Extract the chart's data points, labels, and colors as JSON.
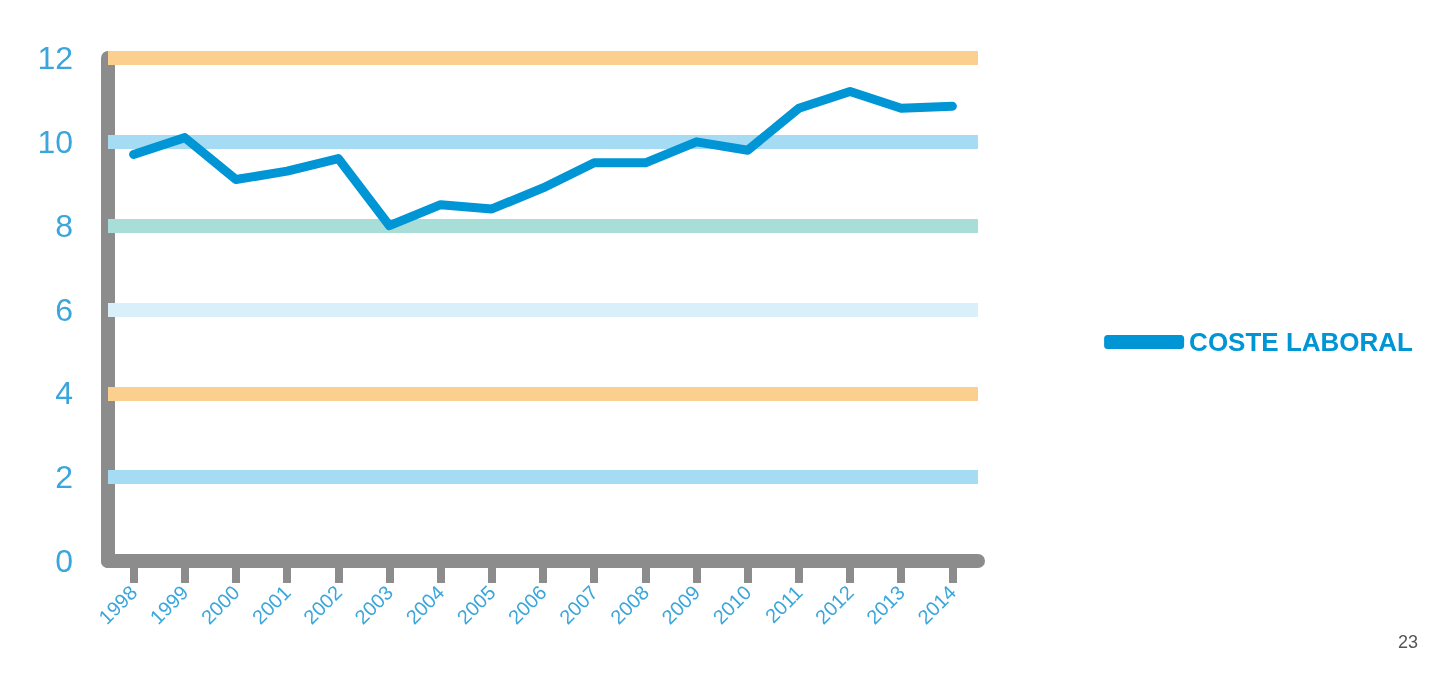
{
  "chart_data": {
    "type": "line",
    "categories": [
      "1998",
      "1999",
      "2000",
      "2001",
      "2002",
      "2003",
      "2004",
      "2005",
      "2006",
      "2007",
      "2008",
      "2009",
      "2010",
      "2011",
      "2012",
      "2013",
      "2014"
    ],
    "series": [
      {
        "name": "COSTE LABORAL",
        "color": "#0095d5",
        "values": [
          9.7,
          10.1,
          9.1,
          9.3,
          9.6,
          8.0,
          8.5,
          8.4,
          8.9,
          9.5,
          9.5,
          10.0,
          9.8,
          10.8,
          11.2,
          10.8,
          10.85
        ]
      }
    ],
    "ylim": [
      0,
      12
    ],
    "yticks": [
      0,
      2,
      4,
      6,
      8,
      10,
      12
    ],
    "ref_lines": [
      {
        "axis": "y",
        "value": 2,
        "color": "#a6dcf3"
      },
      {
        "axis": "y",
        "value": 4,
        "color": "#fbd08e"
      },
      {
        "axis": "y",
        "value": 6,
        "color": "#d9effa"
      },
      {
        "axis": "y",
        "value": 8,
        "color": "#a8ddd8"
      },
      {
        "axis": "y",
        "value": 10,
        "color": "#a6dcf3"
      },
      {
        "axis": "y",
        "value": 12,
        "color": "#fbd08e"
      }
    ],
    "legend": "right",
    "marker": "none",
    "line_style": "solid",
    "annotations": [
      "23"
    ]
  }
}
